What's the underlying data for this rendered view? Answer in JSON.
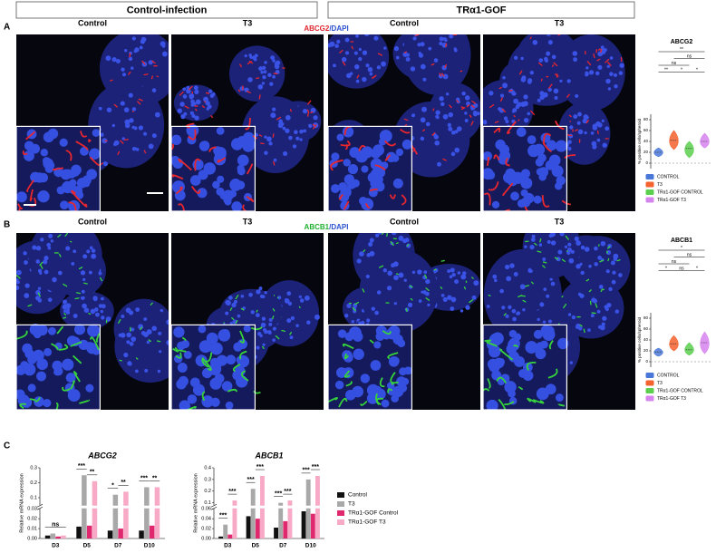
{
  "figure": {
    "headers": [
      "Control-infection",
      "TRα1-GOF"
    ],
    "panels": [
      {
        "label": "A",
        "columns": [
          "Control",
          "T3",
          "Control",
          "T3"
        ],
        "stain": [
          "ABCG2",
          "/DAPI"
        ]
      },
      {
        "label": "B",
        "columns": [
          "Control",
          "T3",
          "Control",
          "T3"
        ],
        "stain": [
          "ABCB1",
          "/DAPI"
        ]
      },
      {
        "label": "C"
      }
    ]
  },
  "chart_data": [
    {
      "type": "violin",
      "title": "ABCG2",
      "ylabel": "% positive cells/spheroid",
      "ylim": [
        -10,
        90
      ],
      "yticks": [
        0,
        20,
        40,
        60,
        80
      ],
      "series": [
        {
          "name": "CONTROL",
          "color": "#4a78d8",
          "min": 12,
          "median": 20,
          "max": 28
        },
        {
          "name": "T3",
          "color": "#f4622e",
          "min": 25,
          "median": 42,
          "max": 60
        },
        {
          "name": "TRα1-GOF CONTROL",
          "color": "#5ccf4e",
          "min": 10,
          "median": 27,
          "max": 40
        },
        {
          "name": "TRα1-GOF T3",
          "color": "#d684ee",
          "min": 28,
          "median": 40,
          "max": 55
        }
      ],
      "annotations": [
        "**",
        "ns",
        "ns",
        "**",
        "*",
        "*"
      ]
    },
    {
      "type": "violin",
      "title": "ABCB1",
      "ylabel": "% positive cells/spheroid",
      "ylim": [
        -10,
        90
      ],
      "yticks": [
        0,
        20,
        40,
        60,
        80
      ],
      "series": [
        {
          "name": "CONTROL",
          "color": "#4a78d8",
          "min": 10,
          "median": 18,
          "max": 25
        },
        {
          "name": "T3",
          "color": "#f4622e",
          "min": 20,
          "median": 33,
          "max": 48
        },
        {
          "name": "TRα1-GOF CONTROL",
          "color": "#5ccf4e",
          "min": 12,
          "median": 22,
          "max": 35
        },
        {
          "name": "TRα1-GOF T3",
          "color": "#d684ee",
          "min": 15,
          "median": 35,
          "max": 55
        }
      ],
      "annotations": [
        "*",
        "ns",
        "ns",
        "*",
        "ns",
        "*"
      ]
    },
    {
      "type": "bar",
      "title": "ABCG2",
      "ylabel": "Relative mRNA expression",
      "categories": [
        "D3",
        "D5",
        "D7",
        "D10"
      ],
      "ylim": [
        0,
        0.3
      ],
      "ybreak": [
        0.03,
        0.05
      ],
      "yticks": [
        {
          "value": 0,
          "label": "0.00"
        },
        0.01,
        0.02,
        0.03,
        0.1,
        0.2,
        0.3
      ],
      "series": [
        {
          "name": "Control",
          "color": "#111111",
          "values": [
            0.003,
            0.012,
            0.008,
            0.008
          ]
        },
        {
          "name": "T3",
          "color": "#a8a8a8",
          "values": [
            0.005,
            0.25,
            0.12,
            0.17
          ]
        },
        {
          "name": "TRα1-GOF Control",
          "color": "#e0286e",
          "values": [
            0.002,
            0.013,
            0.01,
            0.013
          ]
        },
        {
          "name": "TRα1-GOF T3",
          "color": "#f7a9c6",
          "values": [
            0.003,
            0.21,
            0.14,
            0.17
          ]
        }
      ],
      "significance": [
        [
          "ns"
        ],
        [
          "***",
          "**"
        ],
        [
          "*",
          "**"
        ],
        [
          "***",
          "**"
        ]
      ]
    },
    {
      "type": "bar",
      "title": "ABCB1",
      "ylabel": "Relative mRNA expression",
      "categories": [
        "D3",
        "D5",
        "D7",
        "D10"
      ],
      "ylim": [
        0,
        0.4
      ],
      "ybreak": [
        0.06,
        0.08
      ],
      "yticks": [
        {
          "value": 0,
          "label": "0.00"
        },
        0.02,
        0.04,
        0.06,
        0.1,
        0.2,
        0.3,
        0.4
      ],
      "series": [
        {
          "name": "Control",
          "color": "#111111",
          "values": [
            0.004,
            0.045,
            0.022,
            0.055
          ]
        },
        {
          "name": "T3",
          "color": "#a8a8a8",
          "values": [
            0.028,
            0.22,
            0.1,
            0.3
          ]
        },
        {
          "name": "TRα1-GOF Control",
          "color": "#e0286e",
          "values": [
            0.008,
            0.04,
            0.035,
            0.05
          ]
        },
        {
          "name": "TRα1-GOF T3",
          "color": "#f7a9c6",
          "values": [
            0.12,
            0.33,
            0.12,
            0.33
          ]
        }
      ],
      "significance": [
        [
          "***",
          "***"
        ],
        [
          "***",
          "***"
        ],
        [
          "***",
          "***"
        ],
        [
          "***",
          "***"
        ]
      ]
    }
  ]
}
